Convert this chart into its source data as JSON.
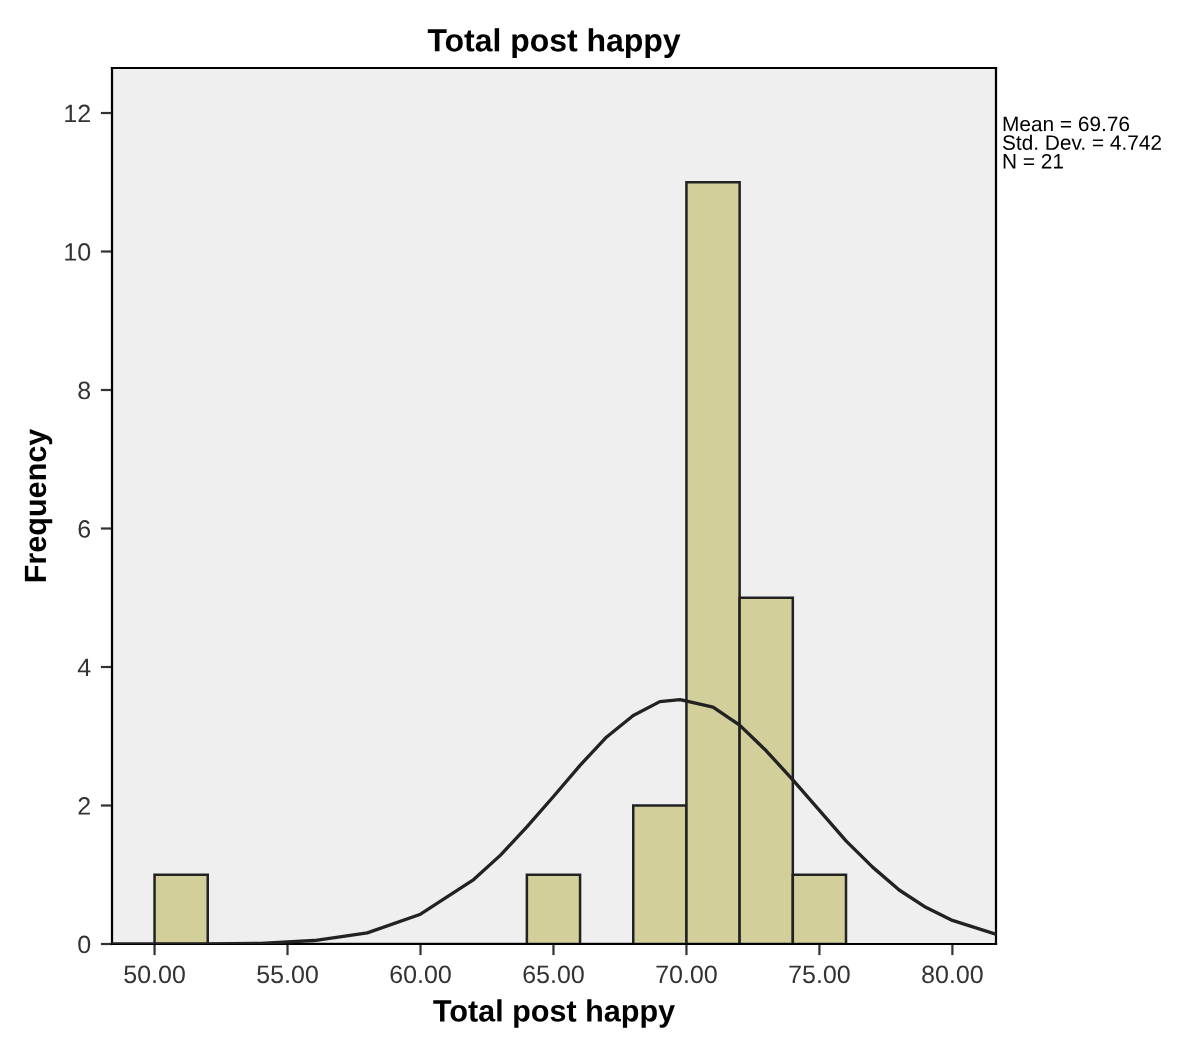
{
  "chart_data": {
    "type": "histogram",
    "title": "Total post happy",
    "xlabel": "Total post happy",
    "ylabel": "Frequency",
    "bins": [
      50,
      52,
      54,
      56,
      58,
      60,
      62,
      64,
      66,
      68,
      70,
      72,
      74,
      76
    ],
    "values": [
      1,
      0,
      0,
      0,
      0,
      0,
      0,
      1,
      0,
      2,
      11,
      5,
      1
    ],
    "color": "#d3cf9a",
    "series": [
      {
        "type": "line",
        "color": "#222222",
        "x": [
          48.4,
          50,
          52,
          54,
          55,
          56,
          58,
          60,
          62,
          63,
          64,
          65,
          66,
          67,
          68,
          69,
          69.76,
          71,
          72,
          73,
          74,
          75,
          76,
          77,
          78,
          79,
          80,
          81.64
        ],
        "values": [
          0.0,
          0.0,
          0.0,
          0.01,
          0.03,
          0.05,
          0.16,
          0.43,
          0.93,
          1.28,
          1.69,
          2.13,
          2.58,
          2.99,
          3.3,
          3.5,
          3.53,
          3.42,
          3.16,
          2.79,
          2.37,
          1.93,
          1.49,
          1.11,
          0.78,
          0.53,
          0.34,
          0.14
        ]
      }
    ],
    "annotations": [
      "Mean = 69.76\nStd. Dev. = 4.742\nN = 21"
    ],
    "xlim": [
      48.4,
      81.64
    ],
    "ylim": [
      0,
      12.65
    ],
    "xticks": [
      {
        "value": 50,
        "label": "50.00"
      },
      {
        "value": 55,
        "label": "55.00"
      },
      {
        "value": 60,
        "label": "60.00"
      },
      {
        "value": 65,
        "label": "65.00"
      },
      {
        "value": 70,
        "label": "70.00"
      },
      {
        "value": 75,
        "label": "75.00"
      },
      {
        "value": 80,
        "label": "80.00"
      }
    ],
    "yticks": [
      0,
      2,
      4,
      6,
      8,
      10,
      12
    ],
    "grid": false,
    "legend": false
  }
}
